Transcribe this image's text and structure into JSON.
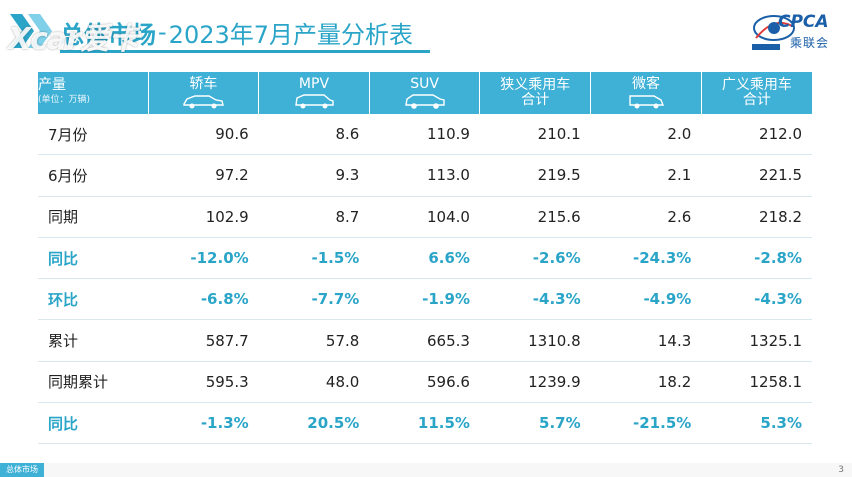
{
  "header": {
    "section": "总体市场",
    "separator": "-",
    "title": "2023年7月产量分析表",
    "overlay_logo": "Xcar爱卡",
    "org_logo": "CPCA",
    "org_name": "乘联会"
  },
  "table": {
    "corner_main": "产量",
    "corner_sub": "(单位：万辆)",
    "columns": [
      {
        "line1": "轿车",
        "line2": "",
        "icon": "sedan-icon"
      },
      {
        "line1": "MPV",
        "line2": "",
        "icon": "mpv-icon"
      },
      {
        "line1": "SUV",
        "line2": "",
        "icon": "suv-icon"
      },
      {
        "line1": "狭义乘用车",
        "line2": "合计",
        "icon": ""
      },
      {
        "line1": "微客",
        "line2": "",
        "icon": "minivan-icon"
      },
      {
        "line1": "广义乘用车",
        "line2": "合计",
        "icon": ""
      }
    ],
    "rows": [
      {
        "label": "7月份",
        "values": [
          "90.6",
          "8.6",
          "110.9",
          "210.1",
          "2.0",
          "212.0"
        ],
        "pct": false
      },
      {
        "label": "6月份",
        "values": [
          "97.2",
          "9.3",
          "113.0",
          "219.5",
          "2.1",
          "221.5"
        ],
        "pct": false
      },
      {
        "label": "同期",
        "values": [
          "102.9",
          "8.7",
          "104.0",
          "215.6",
          "2.6",
          "218.2"
        ],
        "pct": false
      },
      {
        "label": "同比",
        "values": [
          "-12.0%",
          "-1.5%",
          "6.6%",
          "-2.6%",
          "-24.3%",
          "-2.8%"
        ],
        "pct": true
      },
      {
        "label": "环比",
        "values": [
          "-6.8%",
          "-7.7%",
          "-1.9%",
          "-4.3%",
          "-4.9%",
          "-4.3%"
        ],
        "pct": true
      },
      {
        "label": "累计",
        "values": [
          "587.7",
          "57.8",
          "665.3",
          "1310.8",
          "14.3",
          "1325.1"
        ],
        "pct": false
      },
      {
        "label": "同期累计",
        "values": [
          "595.3",
          "48.0",
          "596.6",
          "1239.9",
          "18.2",
          "1258.1"
        ],
        "pct": false
      },
      {
        "label": "同比",
        "values": [
          "-1.3%",
          "20.5%",
          "11.5%",
          "5.7%",
          "-21.5%",
          "5.3%"
        ],
        "pct": true
      }
    ]
  },
  "footer": {
    "tabs": [
      "总体市场",
      "",
      "",
      ""
    ],
    "page": "3"
  },
  "colors": {
    "accent": "#2aa5c8",
    "header_bg": "#3fb0d6",
    "logo_blue": "#1a5fa8"
  }
}
